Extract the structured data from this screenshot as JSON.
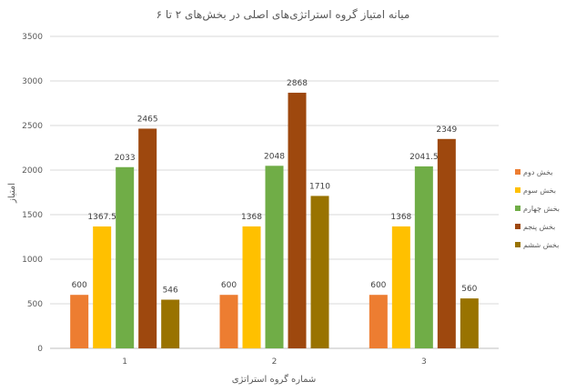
{
  "chart_data": {
    "type": "bar",
    "title": "میانه امتیاز گروه استراتژی‌های اصلی در بخش‌های ۲ تا ۶",
    "xlabel": "شماره گروه استراتژی",
    "ylabel": "امتیاز",
    "categories": [
      "1",
      "2",
      "3"
    ],
    "ylim": [
      0,
      3500
    ],
    "yticks": [
      "0",
      "500",
      "1000",
      "1500",
      "2000",
      "2500",
      "3000",
      "3500"
    ],
    "ytick_values": [
      0,
      500,
      1000,
      1500,
      2000,
      2500,
      3000,
      3500
    ],
    "grid": true,
    "legend_position": "right",
    "series": [
      {
        "name": "بخش دوم",
        "color": "#ED7D31",
        "values": [
          600,
          600,
          600
        ],
        "labels": [
          "600",
          "600",
          "600"
        ]
      },
      {
        "name": "بخش سوم",
        "color": "#FFC000",
        "values": [
          1367.5,
          1368,
          1368
        ],
        "labels": [
          "1367.5",
          "1368",
          "1368"
        ]
      },
      {
        "name": "بخش چهارم",
        "color": "#70AD47",
        "values": [
          2033,
          2048,
          2041.5
        ],
        "labels": [
          "2033",
          "2048",
          "2041.5"
        ]
      },
      {
        "name": "بخش پنجم",
        "color": "#9E480E",
        "values": [
          2465,
          2868,
          2349
        ],
        "labels": [
          "2465",
          "2868",
          "2349"
        ]
      },
      {
        "name": "بخش ششم",
        "color": "#997300",
        "values": [
          546,
          1710,
          560
        ],
        "labels": [
          "546",
          "1710",
          "560"
        ]
      }
    ]
  }
}
